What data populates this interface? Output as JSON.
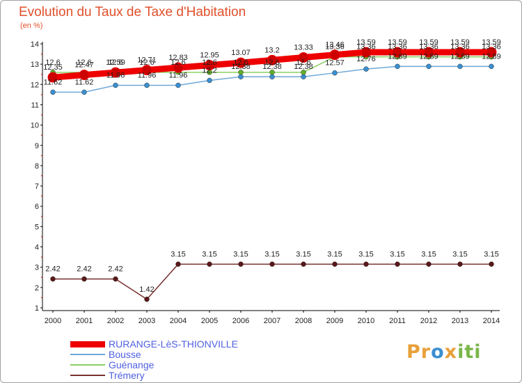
{
  "title": "Evolution du Taux de Taxe d'Habitation",
  "unit": "(en %)",
  "logo": {
    "text": "Proxiti"
  },
  "chart_data": {
    "type": "line",
    "title": "Evolution du Taux de Taxe d'Habitation",
    "ylabel": "(en %)",
    "xlabel": "",
    "x": [
      "2000",
      "2001",
      "2002",
      "2003",
      "2004",
      "2005",
      "2006",
      "2007",
      "2008",
      "2009",
      "2010",
      "2011",
      "2012",
      "2013",
      "2014"
    ],
    "ylim": [
      1,
      14
    ],
    "yticks": [
      1,
      2,
      3,
      4,
      5,
      6,
      7,
      8,
      9,
      10,
      11,
      12,
      13,
      14
    ],
    "grid": false,
    "legend_position": "bottom-left",
    "series": [
      {
        "name": "RURANGE-LèS-THIONVILLE",
        "color": "#ee0000",
        "markerColor": "#cc0000",
        "width": 9,
        "values": [
          12.35,
          12.47,
          12.59,
          12.71,
          12.83,
          12.95,
          13.07,
          13.2,
          13.33,
          13.46,
          13.59,
          13.59,
          13.59,
          13.59,
          13.59
        ],
        "labels": [
          "12.35",
          "12.47",
          "12.59",
          "12.71",
          "12.83",
          "12.95",
          "13.07",
          "13.2",
          "13.33",
          "13.46",
          "13.59",
          "13.59",
          "13.59",
          "13.59",
          "13.59"
        ]
      },
      {
        "name": "Bousse",
        "color": "#6ea8d8",
        "markerColor": "#3a8fd0",
        "width": 1.5,
        "values": [
          11.62,
          11.62,
          11.96,
          11.96,
          11.96,
          12.2,
          12.38,
          12.38,
          12.38,
          12.57,
          12.76,
          12.89,
          12.89,
          12.89,
          12.89
        ],
        "labels": [
          "11.62",
          "11.62",
          "11.96",
          "11.96",
          "11.96",
          "12.2",
          "12.38",
          "12.38",
          "12.38",
          "12.57",
          "12.76",
          "12.89",
          "12.89",
          "12.89",
          "12.89"
        ]
      },
      {
        "name": "Guénange",
        "color": "#8ad060",
        "markerColor": "#5fae2a",
        "width": 1.5,
        "values": [
          12.6,
          12.6,
          12.6,
          12.6,
          12.6,
          12.6,
          12.6,
          12.6,
          12.6,
          13.36,
          13.36,
          13.36,
          13.36,
          13.36,
          13.36
        ],
        "labels": [
          "12.6",
          "12.6",
          "12.6",
          "12.6",
          "12.6",
          "12.6",
          "12.6",
          "12.6",
          "12.6",
          "13.36",
          "13.36",
          "13.36",
          "13.36",
          "13.36",
          "13.36"
        ]
      },
      {
        "name": "Trémery",
        "color": "#7a3030",
        "markerColor": "#5a1818",
        "width": 1.5,
        "values": [
          2.42,
          2.42,
          2.42,
          1.42,
          3.15,
          3.15,
          3.15,
          3.15,
          3.15,
          3.15,
          3.15,
          3.15,
          3.15,
          3.15,
          3.15
        ],
        "labels": [
          "2.42",
          "2.42",
          "2.42",
          "1.42",
          "3.15",
          "3.15",
          "3.15",
          "3.15",
          "3.15",
          "3.15",
          "3.15",
          "3.15",
          "3.15",
          "3.15",
          "3.15"
        ]
      }
    ]
  }
}
